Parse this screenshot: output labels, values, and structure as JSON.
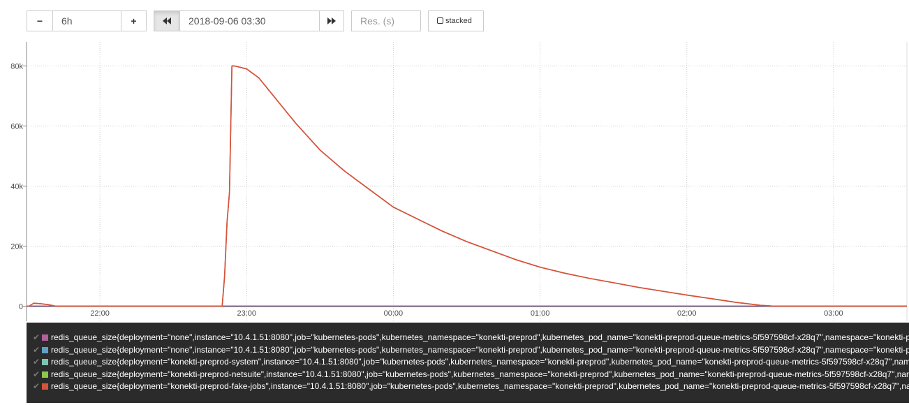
{
  "controls": {
    "range_minus": "−",
    "range_value": "6h",
    "range_plus": "+",
    "back_icon": "double-chevron-left",
    "end_time": "2018-09-06 03:30",
    "forward_icon": "double-chevron-right",
    "resolution_placeholder": "Res. (s)",
    "stacked_label": "stacked"
  },
  "colors": {
    "line": "#d4543b",
    "baseline": "#6e4b73",
    "grid": "#cfcfcf",
    "legend_bg": "#2b2b2b"
  },
  "chart_data": {
    "type": "line",
    "x_unit": "time",
    "xlim": [
      "21:30",
      "03:30"
    ],
    "ylim": [
      -5000,
      88000
    ],
    "grid": true,
    "x_ticks": [
      "22:00",
      "23:00",
      "00:00",
      "01:00",
      "02:00",
      "03:00"
    ],
    "y_ticks": [
      "0",
      "20k",
      "40k",
      "60k",
      "80k"
    ],
    "y_tick_values": [
      0,
      20000,
      40000,
      60000,
      80000
    ],
    "series": [
      {
        "color": "#d4543b",
        "x": [
          "21:30",
          "21:31",
          "21:33",
          "21:36",
          "21:39",
          "21:42",
          "21:45",
          "22:00",
          "22:30",
          "22:50",
          "22:51",
          "22:52",
          "22:53",
          "22:54",
          "22:55",
          "23:00",
          "23:05",
          "23:10",
          "23:15",
          "23:20",
          "23:30",
          "23:40",
          "23:50",
          "00:00",
          "00:10",
          "00:20",
          "00:30",
          "00:40",
          "00:50",
          "01:00",
          "01:10",
          "01:20",
          "01:30",
          "01:40",
          "01:50",
          "02:00",
          "02:10",
          "02:20",
          "02:30",
          "02:36",
          "02:40",
          "03:00",
          "03:30"
        ],
        "values": [
          0,
          0,
          1000,
          800,
          500,
          0,
          0,
          0,
          0,
          0,
          10000,
          28000,
          38000,
          80000,
          80000,
          79000,
          76000,
          71000,
          66000,
          61000,
          52000,
          45000,
          39000,
          33000,
          29000,
          25000,
          21500,
          18500,
          15500,
          13000,
          11000,
          9300,
          7800,
          6300,
          5000,
          3700,
          2500,
          1300,
          300,
          0,
          0,
          0,
          0
        ]
      },
      {
        "color": "#6e4b73",
        "x": [
          "21:30",
          "03:30"
        ],
        "values": [
          0,
          0
        ]
      },
      {
        "color": "#5fa0c8",
        "x": [
          "21:30",
          "03:30"
        ],
        "values": [
          0,
          0
        ]
      },
      {
        "color": "#7fc4b0",
        "x": [
          "21:30",
          "03:30"
        ],
        "values": [
          0,
          0
        ]
      },
      {
        "color": "#8ac94b",
        "x": [
          "21:30",
          "03:30"
        ],
        "values": [
          0,
          0
        ]
      }
    ]
  },
  "legend": [
    {
      "color": "#b0609a",
      "label": "redis_queue_size{deployment=\"none\",instance=\"10.4.1.51:8080\",job=\"kubernetes-pods\",kubernetes_namespace=\"konekti-preprod\",kubernetes_pod_name=\"konekti-preprod-queue-metrics-5f597598cf-x28q7\",namespace=\"konekti-p"
    },
    {
      "color": "#5fa0c8",
      "label": "redis_queue_size{deployment=\"none\",instance=\"10.4.1.51:8080\",job=\"kubernetes-pods\",kubernetes_namespace=\"konekti-preprod\",kubernetes_pod_name=\"konekti-preprod-queue-metrics-5f597598cf-x28q7\",namespace=\"konekti-p"
    },
    {
      "color": "#7fc4b0",
      "label": "redis_queue_size{deployment=\"konekti-preprod-system\",instance=\"10.4.1.51:8080\",job=\"kubernetes-pods\",kubernetes_namespace=\"konekti-preprod\",kubernetes_pod_name=\"konekti-preprod-queue-metrics-5f597598cf-x28q7\",nam"
    },
    {
      "color": "#8ac94b",
      "label": "redis_queue_size{deployment=\"konekti-preprod-netsuite\",instance=\"10.4.1.51:8080\",job=\"kubernetes-pods\",kubernetes_namespace=\"konekti-preprod\",kubernetes_pod_name=\"konekti-preprod-queue-metrics-5f597598cf-x28q7\",nam"
    },
    {
      "color": "#d4543b",
      "label": "redis_queue_size{deployment=\"konekti-preprod-fake-jobs\",instance=\"10.4.1.51:8080\",job=\"kubernetes-pods\",kubernetes_namespace=\"konekti-preprod\",kubernetes_pod_name=\"konekti-preprod-queue-metrics-5f597598cf-x28q7\",na"
    }
  ]
}
